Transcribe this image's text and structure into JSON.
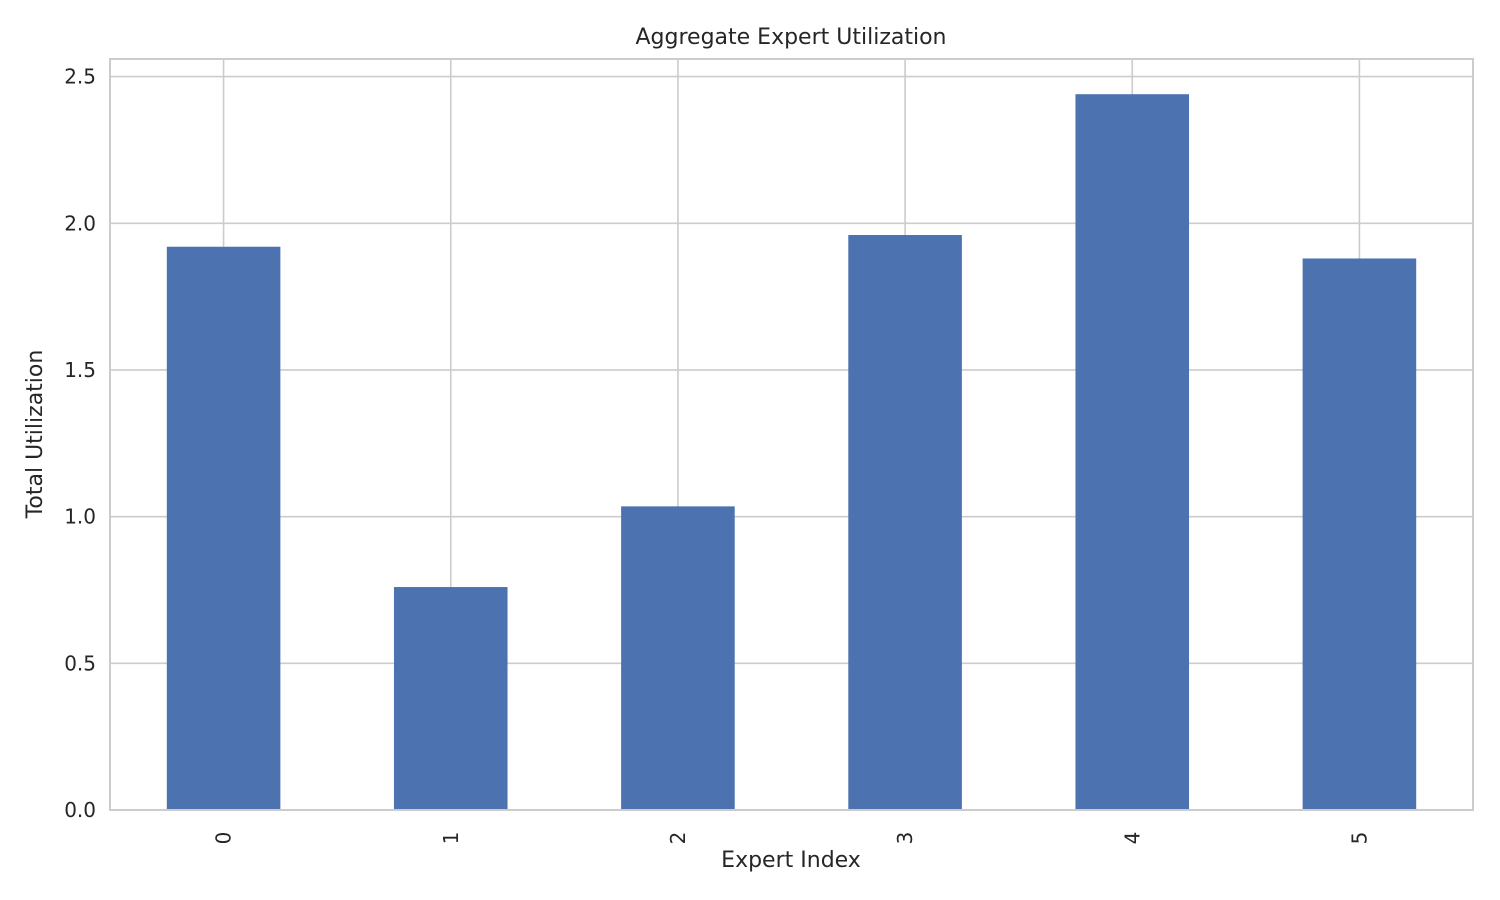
{
  "chart_data": {
    "type": "bar",
    "title": "Aggregate Expert Utilization",
    "xlabel": "Expert Index",
    "ylabel": "Total Utilization",
    "categories": [
      "0",
      "1",
      "2",
      "3",
      "4",
      "5"
    ],
    "values": [
      1.92,
      0.76,
      1.035,
      1.96,
      2.44,
      1.88
    ],
    "ylim": [
      0,
      2.56
    ],
    "yticks": [
      0.0,
      0.5,
      1.0,
      1.5,
      2.0,
      2.5
    ],
    "ytick_labels": [
      "0.0",
      "0.5",
      "1.0",
      "1.5",
      "2.0",
      "2.5"
    ],
    "grid": true,
    "legend": "none",
    "bar_color": "#4c72b0",
    "xtick_rotation": "vertical"
  }
}
